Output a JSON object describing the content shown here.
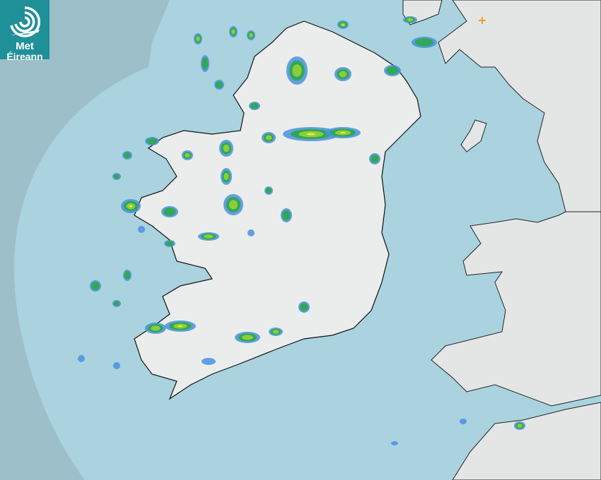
{
  "brand": {
    "name_line1": "Met",
    "name_line2": "Éireann",
    "color": "#1f8f98"
  },
  "map": {
    "type": "rainfall-radar",
    "sea_color": "#aad3df",
    "outside_coverage_color": "#9dbfca",
    "land_color": "#e8eaea",
    "rain_colors": [
      "#4a90e2",
      "#2fa84f",
      "#8fd13a",
      "#f2e83a"
    ],
    "marker": {
      "icon": "plus-icon",
      "color": "#f0a020"
    }
  }
}
